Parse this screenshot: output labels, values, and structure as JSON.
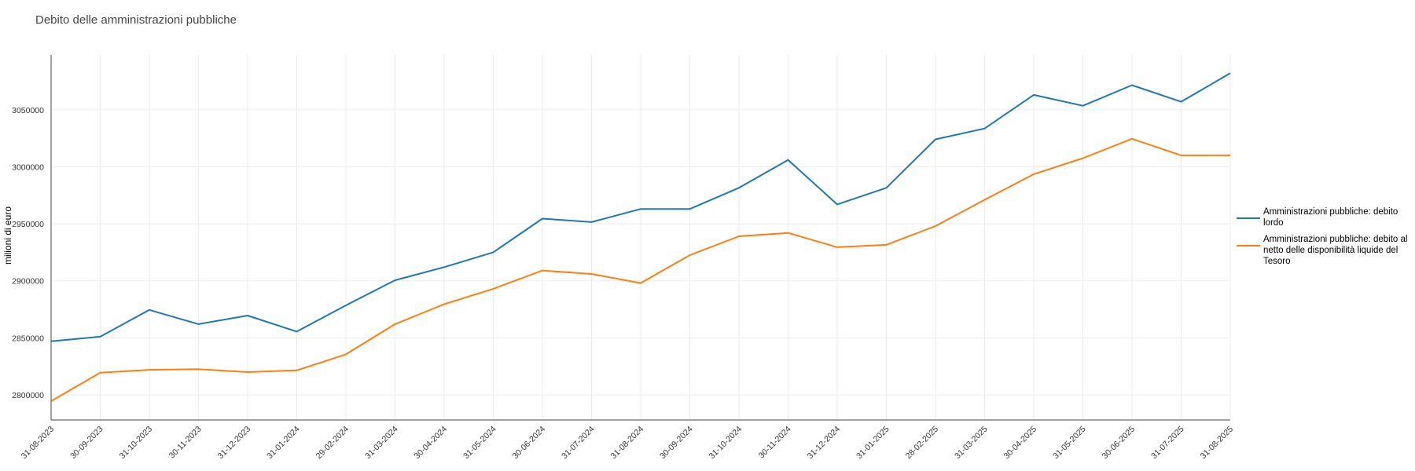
{
  "chart_data": {
    "type": "line",
    "title": "Debito delle amministrazioni pubbliche",
    "xlabel": "",
    "ylabel": "milioni di euro",
    "categories": [
      "31-08-2023",
      "30-09-2023",
      "31-10-2023",
      "30-11-2023",
      "31-12-2023",
      "31-01-2024",
      "29-02-2024",
      "31-03-2024",
      "30-04-2024",
      "31-05-2024",
      "30-06-2024",
      "31-07-2024",
      "31-08-2024",
      "30-09-2024",
      "31-10-2024",
      "30-11-2024",
      "31-12-2024",
      "31-01-2025",
      "28-02-2025",
      "31-03-2025",
      "30-04-2025",
      "31-05-2025",
      "30-06-2025",
      "31-07-2025",
      "31-08-2025"
    ],
    "series": [
      {
        "name": "Amministrazioni pubbliche: debito lordo",
        "color": "#1f77b4",
        "values": [
          2847000,
          2851000,
          2874500,
          2862000,
          2869500,
          2855500,
          2878500,
          2900500,
          2912000,
          2925000,
          2954500,
          2951500,
          2963000,
          2963000,
          2981500,
          3006000,
          2967000,
          2981500,
          3024000,
          3033500,
          3063000,
          3053500,
          3071500,
          3057000,
          3082000
        ]
      },
      {
        "name": "Amministrazioni pubbliche: debito al netto delle disponibilità liquide del Tesoro",
        "color": "#ff7f0e",
        "values": [
          2794500,
          2819500,
          2822000,
          2822500,
          2820000,
          2821500,
          2835500,
          2862000,
          2879500,
          2893000,
          2909000,
          2906000,
          2898000,
          2922500,
          2939000,
          2942000,
          2929500,
          2931500,
          2948000,
          2971000,
          2993500,
          3007500,
          3024500,
          3010000,
          3010000
        ]
      }
    ],
    "yticks": [
      "2800000",
      "2850000",
      "2900000",
      "2950000",
      "3000000",
      "3050000"
    ],
    "ylim": [
      2778000,
      3098000
    ],
    "grid": true,
    "legend_position": "right"
  }
}
